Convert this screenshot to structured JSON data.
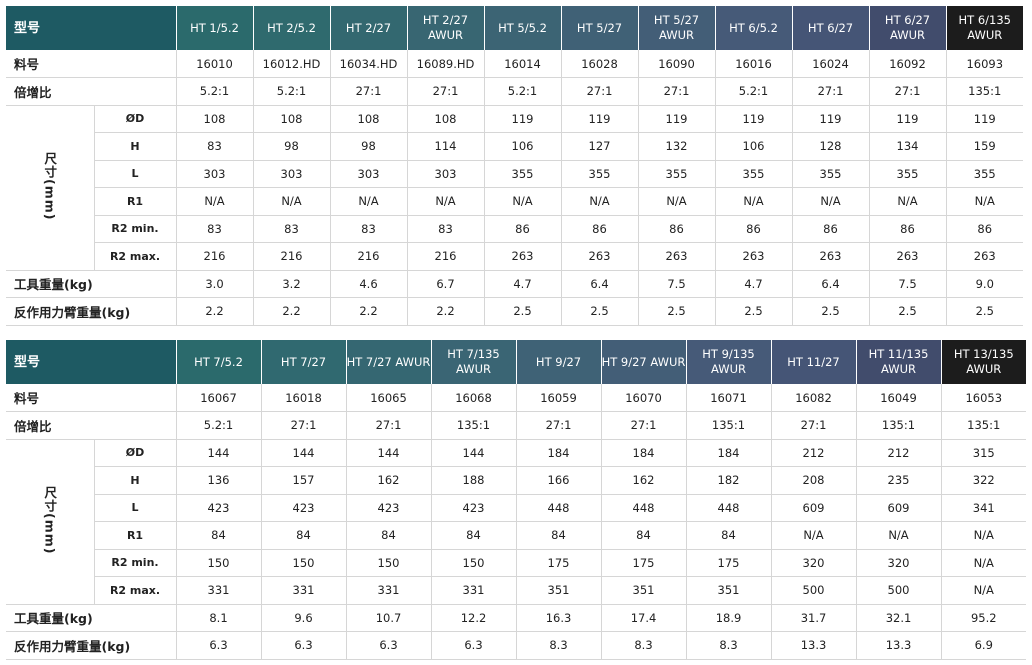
{
  "tables": [
    {
      "header_label": "型号",
      "models": [
        "HT 1/5.2",
        "HT 2/5.2",
        "HT 2/27",
        "HT 2/27 AWUR",
        "HT 5/5.2",
        "HT 5/27",
        "HT 5/27 AWUR",
        "HT 6/5.2",
        "HT 6/27",
        "HT 6/27 AWUR",
        "HT 6/135 AWUR"
      ],
      "header_colors": [
        "#2b6a6c",
        "#2f6a6e",
        "#336870",
        "#386672",
        "#3c6474",
        "#406176",
        "#435e77",
        "#465a78",
        "#455576",
        "#414c6c",
        "#1c1c1c"
      ],
      "part_label": "料号",
      "part_numbers": [
        "16010",
        "16012.HD",
        "16034.HD",
        "16089.HD",
        "16014",
        "16028",
        "16090",
        "16016",
        "16024",
        "16092",
        "16093"
      ],
      "ratio_label": "倍增比",
      "ratios": [
        "5.2:1",
        "5.2:1",
        "27:1",
        "27:1",
        "5.2:1",
        "27:1",
        "27:1",
        "5.2:1",
        "27:1",
        "27:1",
        "135:1"
      ],
      "dim_label": "尺寸(mm)",
      "dims": [
        {
          "label": "ØD",
          "values": [
            "108",
            "108",
            "108",
            "108",
            "119",
            "119",
            "119",
            "119",
            "119",
            "119",
            "119"
          ]
        },
        {
          "label": "H",
          "values": [
            "83",
            "98",
            "98",
            "114",
            "106",
            "127",
            "132",
            "106",
            "128",
            "134",
            "159"
          ]
        },
        {
          "label": "L",
          "values": [
            "303",
            "303",
            "303",
            "303",
            "355",
            "355",
            "355",
            "355",
            "355",
            "355",
            "355"
          ]
        },
        {
          "label": "R1",
          "values": [
            "N/A",
            "N/A",
            "N/A",
            "N/A",
            "N/A",
            "N/A",
            "N/A",
            "N/A",
            "N/A",
            "N/A",
            "N/A"
          ]
        },
        {
          "label": "R2 min.",
          "values": [
            "83",
            "83",
            "83",
            "83",
            "86",
            "86",
            "86",
            "86",
            "86",
            "86",
            "86"
          ]
        },
        {
          "label": "R2 max.",
          "values": [
            "216",
            "216",
            "216",
            "216",
            "263",
            "263",
            "263",
            "263",
            "263",
            "263",
            "263"
          ]
        }
      ],
      "tool_weight_label": "工具重量(kg)",
      "tool_weights": [
        "3.0",
        "3.2",
        "4.6",
        "6.7",
        "4.7",
        "6.4",
        "7.5",
        "4.7",
        "6.4",
        "7.5",
        "9.0"
      ],
      "arm_weight_label": "反作用力臂重量(kg)",
      "arm_weights": [
        "2.2",
        "2.2",
        "2.2",
        "2.2",
        "2.5",
        "2.5",
        "2.5",
        "2.5",
        "2.5",
        "2.5",
        "2.5"
      ]
    },
    {
      "header_label": "型号",
      "models": [
        "HT 7/5.2",
        "HT 7/27",
        "HT 7/27 AWUR",
        "HT 7/135 AWUR",
        "HT 9/27",
        "HT 9/27 AWUR",
        "HT 9/135 AWUR",
        "HT 11/27",
        "HT 11/135 AWUR",
        "HT 13/135 AWUR"
      ],
      "header_colors": [
        "#2b6a6c",
        "#306970",
        "#356772",
        "#3a6574",
        "#3f6276",
        "#435e77",
        "#465a78",
        "#455576",
        "#414c6c",
        "#1c1c1c"
      ],
      "part_label": "料号",
      "part_numbers": [
        "16067",
        "16018",
        "16065",
        "16068",
        "16059",
        "16070",
        "16071",
        "16082",
        "16049",
        "16053"
      ],
      "ratio_label": "倍增比",
      "ratios": [
        "5.2:1",
        "27:1",
        "27:1",
        "135:1",
        "27:1",
        "27:1",
        "135:1",
        "27:1",
        "135:1",
        "135:1"
      ],
      "dim_label": "尺寸(mm)",
      "dims": [
        {
          "label": "ØD",
          "values": [
            "144",
            "144",
            "144",
            "144",
            "184",
            "184",
            "184",
            "212",
            "212",
            "315"
          ]
        },
        {
          "label": "H",
          "values": [
            "136",
            "157",
            "162",
            "188",
            "166",
            "162",
            "182",
            "208",
            "235",
            "322"
          ]
        },
        {
          "label": "L",
          "values": [
            "423",
            "423",
            "423",
            "423",
            "448",
            "448",
            "448",
            "609",
            "609",
            "341"
          ]
        },
        {
          "label": "R1",
          "values": [
            "84",
            "84",
            "84",
            "84",
            "84",
            "84",
            "84",
            "N/A",
            "N/A",
            "N/A"
          ]
        },
        {
          "label": "R2 min.",
          "values": [
            "150",
            "150",
            "150",
            "150",
            "175",
            "175",
            "175",
            "320",
            "320",
            "N/A"
          ]
        },
        {
          "label": "R2 max.",
          "values": [
            "331",
            "331",
            "331",
            "331",
            "351",
            "351",
            "351",
            "500",
            "500",
            "N/A"
          ]
        }
      ],
      "tool_weight_label": "工具重量(kg)",
      "tool_weights": [
        "8.1",
        "9.6",
        "10.7",
        "12.2",
        "16.3",
        "17.4",
        "18.9",
        "31.7",
        "32.1",
        "95.2"
      ],
      "arm_weight_label": "反作用力臂重量(kg)",
      "arm_weights": [
        "6.3",
        "6.3",
        "6.3",
        "6.3",
        "8.3",
        "8.3",
        "8.3",
        "13.3",
        "13.3",
        "6.9"
      ]
    }
  ]
}
